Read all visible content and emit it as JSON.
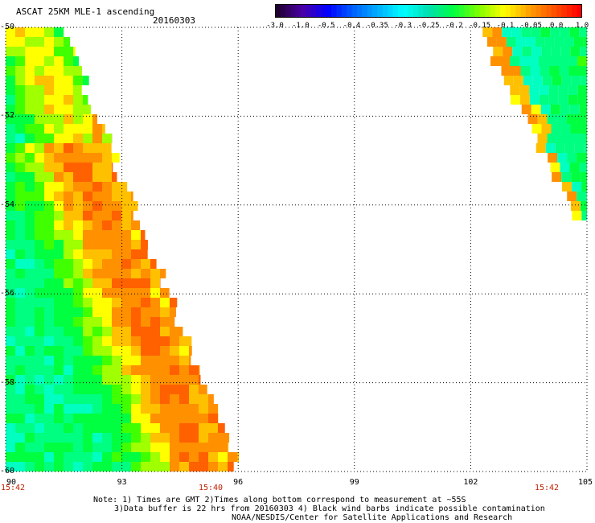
{
  "header": {
    "title": "ASCAT 25KM MLE-1 ascending",
    "date": "20160303"
  },
  "colorbar": {
    "labels": [
      "-3.0",
      "-1.0",
      "-0.5",
      "-0.4",
      "-0.35",
      "-0.3",
      "-0.25",
      "-0.2",
      "-0.15",
      "-0.1",
      "-0.05",
      "0.0",
      "1.0"
    ],
    "colors": [
      "#200030",
      "#4a00a8",
      "#0000ff",
      "#0060ff",
      "#00b0ff",
      "#00ffff",
      "#00e0b0",
      "#00ff40",
      "#80ff00",
      "#ffff00",
      "#ffa000",
      "#ff5000",
      "#ff0000"
    ]
  },
  "map": {
    "lat_labels": [
      "-50",
      "-52",
      "-54",
      "-56",
      "-58",
      "-60"
    ],
    "lon_labels": [
      "90",
      "93",
      "96",
      "99",
      "102",
      "105"
    ],
    "time_labels": [
      "15:42",
      "15:40",
      "15:42"
    ],
    "grid": "dotted"
  },
  "footer": {
    "note_line1": "Note: 1) Times are GMT 2)Times along bottom correspond to measurement at ~55S",
    "note_line2": "3)Data buffer is 22 hrs from 20160303 4) Black wind barbs indicate possible contamination",
    "note_line3": "NOAA/NESDIS/Center for Satellite Applications and Research"
  }
}
